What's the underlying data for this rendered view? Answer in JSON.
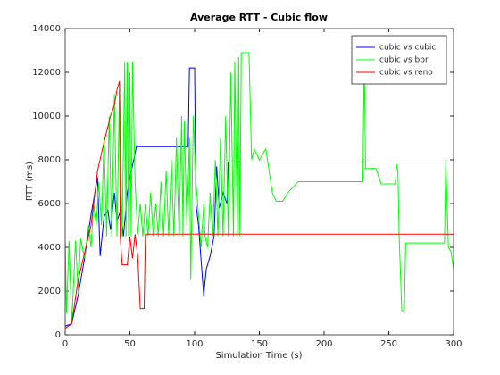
{
  "chart_data": {
    "type": "line",
    "title": "Average RTT - Cubic flow",
    "xlabel": "Simulation Time (s)",
    "ylabel": "RTT (ms)",
    "xlim": [
      0,
      300
    ],
    "xticks": [
      0,
      50,
      100,
      150,
      200,
      250,
      300
    ],
    "ylim": [
      0,
      14000
    ],
    "yticks": [
      0,
      2000,
      4000,
      6000,
      8000,
      10000,
      12000,
      14000
    ],
    "legend": "northeast",
    "grid": false,
    "series": [
      {
        "name": "cubic vs cubic",
        "color": "#0000ff",
        "x": [
          0,
          5,
          10,
          15,
          20,
          25,
          27,
          30,
          33,
          35,
          38,
          40,
          43,
          45,
          48,
          50,
          53,
          55,
          95,
          96,
          100,
          101,
          103,
          107,
          109,
          112,
          115,
          117,
          119,
          122,
          125,
          126,
          300
        ],
        "values": [
          400,
          500,
          1800,
          3500,
          5500,
          7200,
          3600,
          5400,
          5700,
          4800,
          6500,
          5200,
          5700,
          4500,
          6500,
          7200,
          8000,
          8600,
          8600,
          12200,
          12200,
          6000,
          5000,
          1800,
          3000,
          3600,
          4500,
          7700,
          5800,
          6500,
          6000,
          7900,
          7900
        ]
      },
      {
        "name": "cubic vs bbr",
        "color": "#00ff00",
        "x": [
          0,
          1,
          3,
          5,
          8,
          10,
          12,
          15,
          18,
          20,
          22,
          24,
          26,
          28,
          30,
          32,
          34,
          36,
          38,
          40,
          42,
          44,
          46,
          47,
          48,
          49,
          50,
          51,
          52,
          54,
          56,
          58,
          60,
          62,
          64,
          66,
          68,
          70,
          72,
          74,
          76,
          78,
          80,
          82,
          84,
          86,
          88,
          90,
          91,
          92,
          94,
          96,
          97,
          99,
          101,
          103,
          105,
          107,
          108,
          110,
          112,
          114,
          116,
          118,
          120,
          122,
          124,
          126,
          128,
          130,
          131,
          133,
          134,
          135,
          136,
          142,
          144,
          146,
          150,
          155,
          160,
          163,
          168,
          172,
          180,
          230,
          231,
          232,
          240,
          244,
          255,
          256,
          257,
          258,
          260,
          262,
          263,
          293,
          294,
          296,
          298,
          300
        ],
        "values": [
          4300,
          1000,
          4300,
          500,
          4300,
          2000,
          4400,
          3500,
          5000,
          4000,
          6000,
          5000,
          7000,
          5000,
          9000,
          4500,
          10000,
          4500,
          11000,
          4500,
          11500,
          4500,
          12500,
          4500,
          12500,
          4500,
          12000,
          4500,
          12500,
          7000,
          4600,
          6000,
          4500,
          6000,
          4500,
          6500,
          4500,
          6000,
          4500,
          7000,
          4500,
          7500,
          4500,
          8000,
          4500,
          9000,
          4500,
          10000,
          4500,
          9800,
          5000,
          9000,
          2500,
          10000,
          7000,
          5500,
          4000,
          6000,
          4500,
          4000,
          6500,
          4500,
          8000,
          4500,
          9000,
          4500,
          10000,
          4500,
          12000,
          4500,
          12500,
          4500,
          12700,
          4500,
          12900,
          12900,
          8000,
          8500,
          8000,
          8500,
          6500,
          6100,
          6100,
          6500,
          7000,
          7000,
          12900,
          7600,
          7600,
          6900,
          6900,
          7800,
          7500,
          4500,
          1100,
          1100,
          4200,
          4200,
          8000,
          4000,
          3800,
          3000
        ]
      },
      {
        "name": "cubic vs reno",
        "color": "#ff0000",
        "x": [
          0,
          5,
          10,
          20,
          25,
          30,
          35,
          38,
          40,
          42,
          42.5,
          44,
          48,
          50,
          52,
          54,
          56,
          58,
          61,
          62,
          300
        ],
        "values": [
          300,
          500,
          2500,
          5000,
          7500,
          8800,
          10000,
          10500,
          11200,
          11600,
          4500,
          3200,
          3200,
          4500,
          3500,
          4600,
          3600,
          1200,
          1200,
          4600,
          4600
        ]
      }
    ]
  }
}
